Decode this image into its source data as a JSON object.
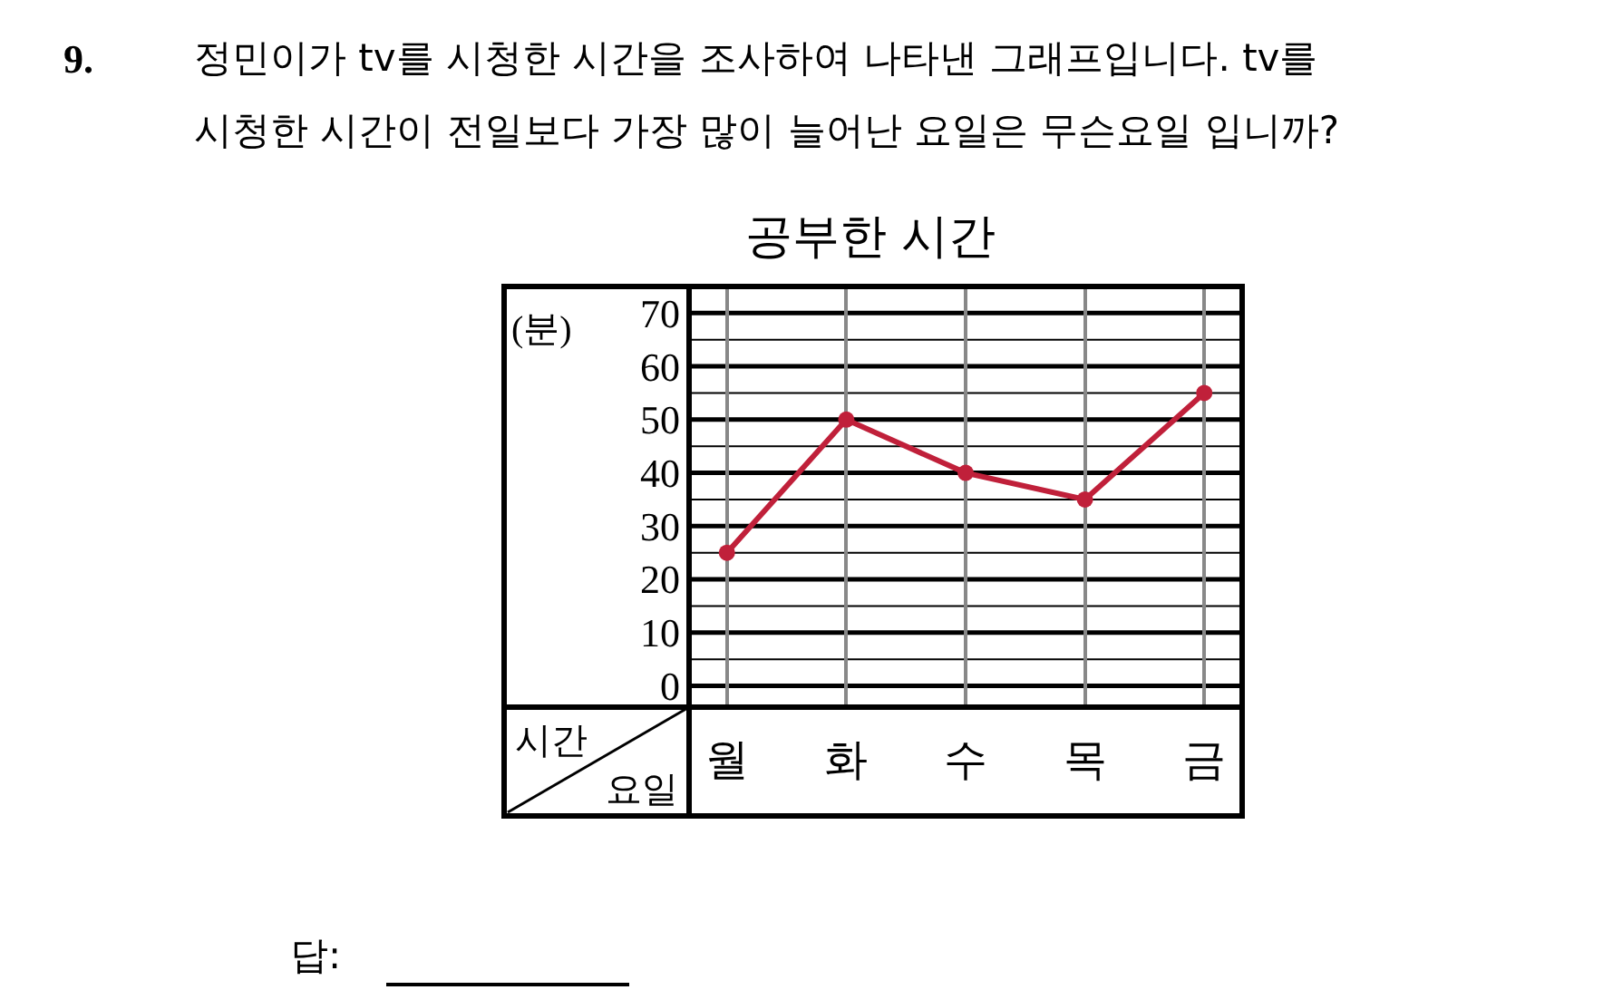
{
  "chart_data": {
    "type": "line",
    "title": "공부한 시간",
    "xlabel": "요일",
    "ylabel": "시간",
    "annotations": [
      "9.",
      "정민이가 tv를 시청한 시간을 조사하여 나타낸 그래프입니다. tv를",
      "시청한 시간이 전일보다 가장 많이 늘어난 요일은 무슨요일 입니까?",
      "(분)",
      "답:"
    ],
    "categories": [
      "월",
      "화",
      "수",
      "목",
      "금"
    ],
    "series": [
      {
        "color": "#c0203a",
        "values": [
          25,
          50,
          40,
          35,
          55
        ]
      }
    ],
    "ylim": [
      -4,
      75
    ],
    "yticks": [
      0,
      {
        "value": 5,
        "label": null
      },
      10,
      {
        "value": 15,
        "label": null
      },
      20,
      {
        "value": 25,
        "label": null
      },
      30,
      {
        "value": 35,
        "label": null
      },
      40,
      {
        "value": 45,
        "label": null
      },
      50,
      {
        "value": 55,
        "label": null
      },
      60,
      {
        "value": 65,
        "label": null
      },
      70
    ],
    "grid": true,
    "marker": "circle",
    "line_style": "solid"
  }
}
